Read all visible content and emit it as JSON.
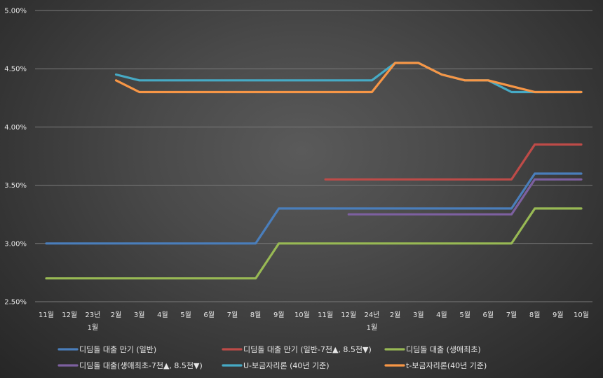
{
  "chart_data": {
    "type": "line",
    "ylim": [
      0.025,
      0.05
    ],
    "yticks": [
      "2.50%",
      "3.00%",
      "3.50%",
      "4.00%",
      "4.50%",
      "5.00%"
    ],
    "ytick_values": [
      0.025,
      0.03,
      0.035,
      0.04,
      0.045,
      0.05
    ],
    "categories": [
      "11월",
      "12월",
      "23년 1월",
      "2월",
      "3월",
      "4월",
      "5월",
      "6월",
      "7월",
      "8월",
      "9월",
      "10월",
      "11월",
      "12월",
      "24년 1월",
      "2월",
      "3월",
      "4월",
      "5월",
      "6월",
      "7월",
      "8월",
      "9월",
      "10월"
    ],
    "x_tick_lines": [
      [
        "11월"
      ],
      [
        "12월"
      ],
      [
        "23년",
        "1월"
      ],
      [
        "2월"
      ],
      [
        "3월"
      ],
      [
        "4월"
      ],
      [
        "5월"
      ],
      [
        "6월"
      ],
      [
        "7월"
      ],
      [
        "8월"
      ],
      [
        "9월"
      ],
      [
        "10월"
      ],
      [
        "11월"
      ],
      [
        "12월"
      ],
      [
        "24년",
        "1월"
      ],
      [
        "2월"
      ],
      [
        "3월"
      ],
      [
        "4월"
      ],
      [
        "5월"
      ],
      [
        "6월"
      ],
      [
        "7월"
      ],
      [
        "8월"
      ],
      [
        "9월"
      ],
      [
        "10월"
      ]
    ],
    "grid": "horizontal",
    "legend_position": "bottom",
    "series": [
      {
        "name": "디딤돌 대출 만기 (일반)",
        "color": "#4a7ebb",
        "values": [
          0.03,
          0.03,
          0.03,
          0.03,
          0.03,
          0.03,
          0.03,
          0.03,
          0.03,
          0.03,
          0.033,
          0.033,
          0.033,
          0.033,
          0.033,
          0.033,
          0.033,
          0.033,
          0.033,
          0.033,
          0.033,
          0.036,
          0.036,
          0.036
        ]
      },
      {
        "name": "디딤돌 대출 만기 (일반-7천▲, 8.5천▼)",
        "color": "#be4b48",
        "values": [
          null,
          null,
          null,
          null,
          null,
          null,
          null,
          null,
          null,
          null,
          null,
          null,
          0.0355,
          0.0355,
          0.0355,
          0.0355,
          0.0355,
          0.0355,
          0.0355,
          0.0355,
          0.0355,
          0.0385,
          0.0385,
          0.0385
        ]
      },
      {
        "name": "디딤돌 대출 (생애최초)",
        "color": "#98b954",
        "values": [
          0.027,
          0.027,
          0.027,
          0.027,
          0.027,
          0.027,
          0.027,
          0.027,
          0.027,
          0.027,
          0.03,
          0.03,
          0.03,
          0.03,
          0.03,
          0.03,
          0.03,
          0.03,
          0.03,
          0.03,
          0.03,
          0.033,
          0.033,
          0.033
        ]
      },
      {
        "name": "디딤돌 대출(생애최초-7천▲, 8.5천▼)",
        "color": "#7d60a0",
        "values": [
          null,
          null,
          null,
          null,
          null,
          null,
          null,
          null,
          null,
          null,
          null,
          null,
          null,
          0.0325,
          0.0325,
          0.0325,
          0.0325,
          0.0325,
          0.0325,
          0.0325,
          0.0325,
          0.0355,
          0.0355,
          0.0355
        ]
      },
      {
        "name": "U-보금자리론 (40년 기준)",
        "color": "#46aac5",
        "values": [
          null,
          null,
          null,
          0.0445,
          0.044,
          0.044,
          0.044,
          0.044,
          0.044,
          0.044,
          0.044,
          0.044,
          0.044,
          0.044,
          0.044,
          0.0455,
          0.0455,
          0.0445,
          0.044,
          0.044,
          0.043,
          0.043,
          0.043,
          0.043
        ]
      },
      {
        "name": "t-보금자리론(40년 기준)",
        "color": "#f79646",
        "values": [
          null,
          null,
          null,
          0.044,
          0.043,
          0.043,
          0.043,
          0.043,
          0.043,
          0.043,
          0.043,
          0.043,
          0.043,
          0.043,
          0.043,
          0.0455,
          0.0455,
          0.0445,
          0.044,
          0.044,
          0.0435,
          0.043,
          0.043,
          0.043
        ]
      }
    ]
  },
  "colors": {
    "gridline": "#7a7a7a",
    "axis_text": "#e8e8e8"
  }
}
